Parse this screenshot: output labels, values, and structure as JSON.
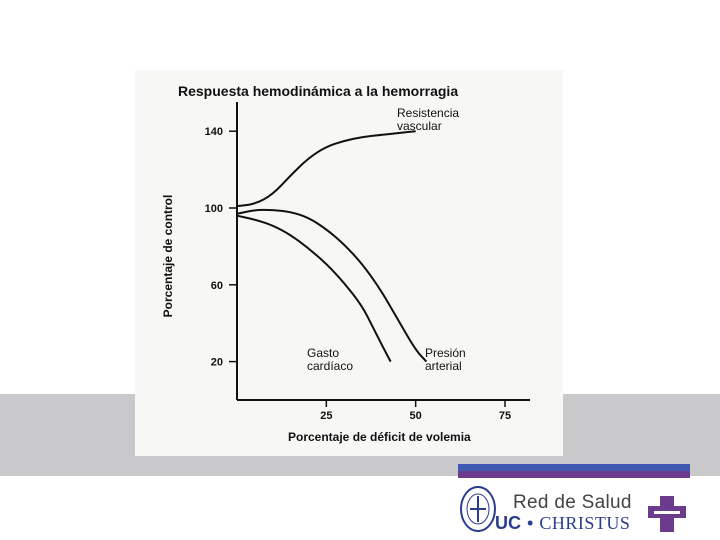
{
  "chart_data": {
    "type": "line",
    "title": "Respuesta hemodinámica a la hemorragia",
    "xlabel": "Porcentaje de déficit de volemia",
    "ylabel": "Porcentaje de control",
    "xlim": [
      0,
      82
    ],
    "ylim": [
      0,
      150
    ],
    "x_ticks": [
      25,
      50,
      75
    ],
    "y_ticks": [
      20,
      60,
      100,
      140
    ],
    "grid": false,
    "series": [
      {
        "name": "Resistencia vascular",
        "label_lines": [
          "Resistencia",
          "vascular"
        ],
        "points": [
          [
            0,
            101
          ],
          [
            5,
            102
          ],
          [
            10,
            107
          ],
          [
            15,
            117
          ],
          [
            20,
            126
          ],
          [
            25,
            132
          ],
          [
            30,
            135
          ],
          [
            35,
            137
          ],
          [
            40,
            138
          ],
          [
            45,
            139
          ],
          [
            50,
            140
          ]
        ]
      },
      {
        "name": "Presión arterial",
        "label_lines": [
          "Presión",
          "arterial"
        ],
        "points": [
          [
            0,
            97
          ],
          [
            5,
            99
          ],
          [
            10,
            99
          ],
          [
            15,
            98
          ],
          [
            20,
            95
          ],
          [
            25,
            89
          ],
          [
            30,
            81
          ],
          [
            35,
            71
          ],
          [
            40,
            58
          ],
          [
            45,
            42
          ],
          [
            50,
            26
          ],
          [
            53,
            20
          ]
        ]
      },
      {
        "name": "Gasto cardíaco",
        "label_lines": [
          "Gasto",
          "cardíaco"
        ],
        "points": [
          [
            0,
            96
          ],
          [
            5,
            94
          ],
          [
            10,
            91
          ],
          [
            15,
            86
          ],
          [
            20,
            79
          ],
          [
            25,
            71
          ],
          [
            30,
            61
          ],
          [
            35,
            49
          ],
          [
            38,
            38
          ],
          [
            41,
            27
          ],
          [
            43,
            20
          ]
        ]
      }
    ]
  },
  "branding": {
    "line1": "Red de Salud",
    "uc": "UC",
    "dot": "•",
    "christus": "CHRISTUS",
    "colors": {
      "blue": "#3f5ab0",
      "purple": "#6b3b8e"
    }
  }
}
